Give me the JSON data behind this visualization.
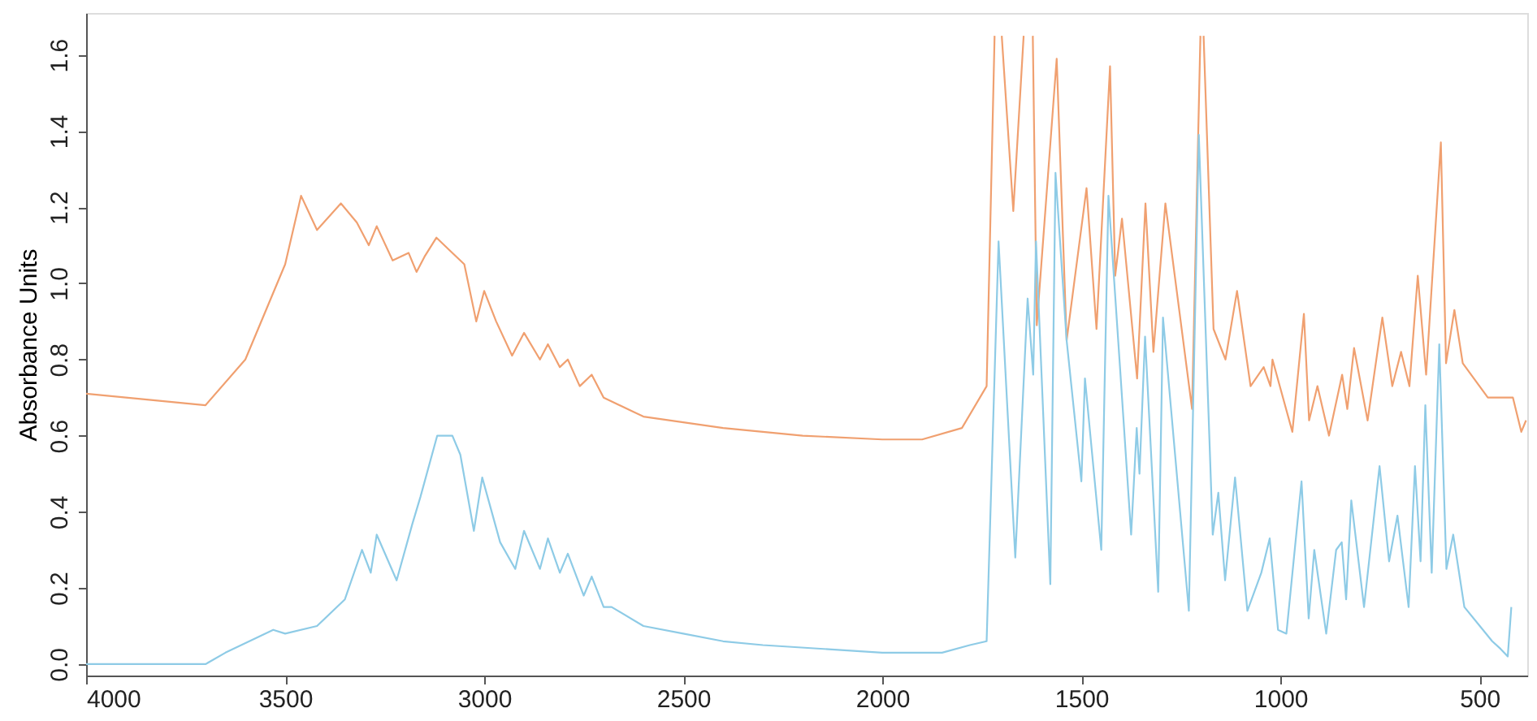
{
  "chart_data": {
    "type": "line",
    "ylabel": "Absorbance Units",
    "xlim": [
      4000,
      380
    ],
    "ylim": [
      -0.03,
      1.71
    ],
    "xticks": [
      4000,
      3500,
      3000,
      2500,
      2000,
      1500,
      1000,
      500
    ],
    "yticks": [
      {
        "value": 0,
        "label": "0.0"
      },
      {
        "value": 0.2,
        "label": "0.2"
      },
      {
        "value": 0.4,
        "label": "0.4"
      },
      {
        "value": 0.6,
        "label": "0.6"
      },
      {
        "value": 0.8,
        "label": "0.8"
      },
      {
        "value": 1.0,
        "label": "1.0"
      },
      {
        "value": 1.2,
        "label": "1.2"
      },
      {
        "value": 1.4,
        "label": "1.4"
      },
      {
        "value": 1.6,
        "label": "1.6"
      }
    ],
    "grid": false,
    "marker": "none",
    "line_style": "solid",
    "series": [
      {
        "color": "#f0a070",
        "x": [
          4000,
          3700,
          3600,
          3500,
          3460,
          3420,
          3360,
          3320,
          3290,
          3270,
          3230,
          3190,
          3170,
          3150,
          3120,
          3080,
          3050,
          3020,
          3000,
          2970,
          2930,
          2900,
          2860,
          2840,
          2810,
          2790,
          2760,
          2730,
          2700,
          2600,
          2400,
          2200,
          2000,
          1900,
          1800,
          1738,
          1718,
          1709,
          1700,
          1671,
          1645,
          1633,
          1622,
          1612,
          1562,
          1537,
          1487,
          1462,
          1428,
          1415,
          1398,
          1360,
          1339,
          1319,
          1289,
          1222,
          1201,
          1197,
          1193,
          1168,
          1138,
          1109,
          1075,
          1042,
          1025,
          1020,
          970,
          941,
          928,
          907,
          878,
          845,
          832,
          815,
          781,
          744,
          719,
          697,
          676,
          655,
          634,
          597,
          584,
          563,
          542,
          479,
          416,
          395,
          383
        ],
        "values": [
          0.71,
          0.68,
          0.8,
          1.05,
          1.23,
          1.14,
          1.21,
          1.16,
          1.1,
          1.15,
          1.06,
          1.08,
          1.03,
          1.07,
          1.12,
          1.08,
          1.05,
          0.9,
          0.98,
          0.9,
          0.81,
          0.87,
          0.8,
          0.84,
          0.78,
          0.8,
          0.73,
          0.76,
          0.7,
          0.65,
          0.62,
          0.6,
          0.59,
          0.59,
          0.62,
          0.73,
          1.65,
          null,
          1.65,
          1.19,
          1.65,
          null,
          1.65,
          0.89,
          1.59,
          0.85,
          1.25,
          0.88,
          1.57,
          1.02,
          1.17,
          0.75,
          1.21,
          0.82,
          1.21,
          0.67,
          1.65,
          null,
          1.65,
          0.88,
          0.8,
          0.98,
          0.73,
          0.78,
          0.73,
          0.8,
          0.61,
          0.92,
          0.64,
          0.73,
          0.6,
          0.76,
          0.67,
          0.83,
          0.64,
          0.91,
          0.73,
          0.82,
          0.73,
          1.02,
          0.76,
          1.37,
          0.79,
          0.93,
          0.79,
          0.7,
          0.7,
          0.61,
          0.64
        ]
      },
      {
        "color": "#8ecbe6",
        "x": [
          4000,
          3700,
          3650,
          3530,
          3500,
          3420,
          3350,
          3307,
          3285,
          3270,
          3220,
          3180,
          3160,
          3118,
          3080,
          3060,
          3026,
          3005,
          2960,
          2922,
          2900,
          2860,
          2840,
          2810,
          2790,
          2750,
          2730,
          2700,
          2680,
          2600,
          2500,
          2400,
          2300,
          2000,
          1850,
          1780,
          1738,
          1708,
          1666,
          1635,
          1621,
          1614,
          1578,
          1565,
          1537,
          1500,
          1491,
          1450,
          1432,
          1403,
          1375,
          1361,
          1354,
          1340,
          1307,
          1295,
          1230,
          1205,
          1170,
          1156,
          1139,
          1114,
          1083,
          1048,
          1027,
          1006,
          985,
          947,
          929,
          915,
          885,
          860,
          846,
          835,
          822,
          790,
          751,
          727,
          706,
          678,
          662,
          648,
          636,
          620,
          601,
          583,
          566,
          538,
          468,
          447,
          429,
          420
        ],
        "values": [
          0.0,
          0.0,
          0.03,
          0.09,
          0.08,
          0.1,
          0.17,
          0.3,
          0.24,
          0.34,
          0.22,
          0.37,
          0.44,
          0.6,
          0.6,
          0.55,
          0.35,
          0.49,
          0.32,
          0.25,
          0.35,
          0.25,
          0.33,
          0.24,
          0.29,
          0.18,
          0.23,
          0.15,
          0.15,
          0.1,
          0.08,
          0.06,
          0.05,
          0.03,
          0.03,
          0.05,
          0.06,
          1.11,
          0.28,
          0.96,
          0.76,
          1.11,
          0.21,
          1.29,
          0.85,
          0.48,
          0.75,
          0.3,
          1.23,
          0.78,
          0.34,
          0.62,
          0.5,
          0.86,
          0.19,
          0.91,
          0.14,
          1.39,
          0.34,
          0.45,
          0.22,
          0.49,
          0.14,
          0.24,
          0.33,
          0.09,
          0.08,
          0.48,
          0.12,
          0.3,
          0.08,
          0.3,
          0.32,
          0.17,
          0.43,
          0.15,
          0.52,
          0.27,
          0.39,
          0.15,
          0.52,
          0.27,
          0.68,
          0.24,
          0.84,
          0.25,
          0.34,
          0.15,
          0.06,
          0.04,
          0.02,
          0.15
        ]
      }
    ]
  }
}
